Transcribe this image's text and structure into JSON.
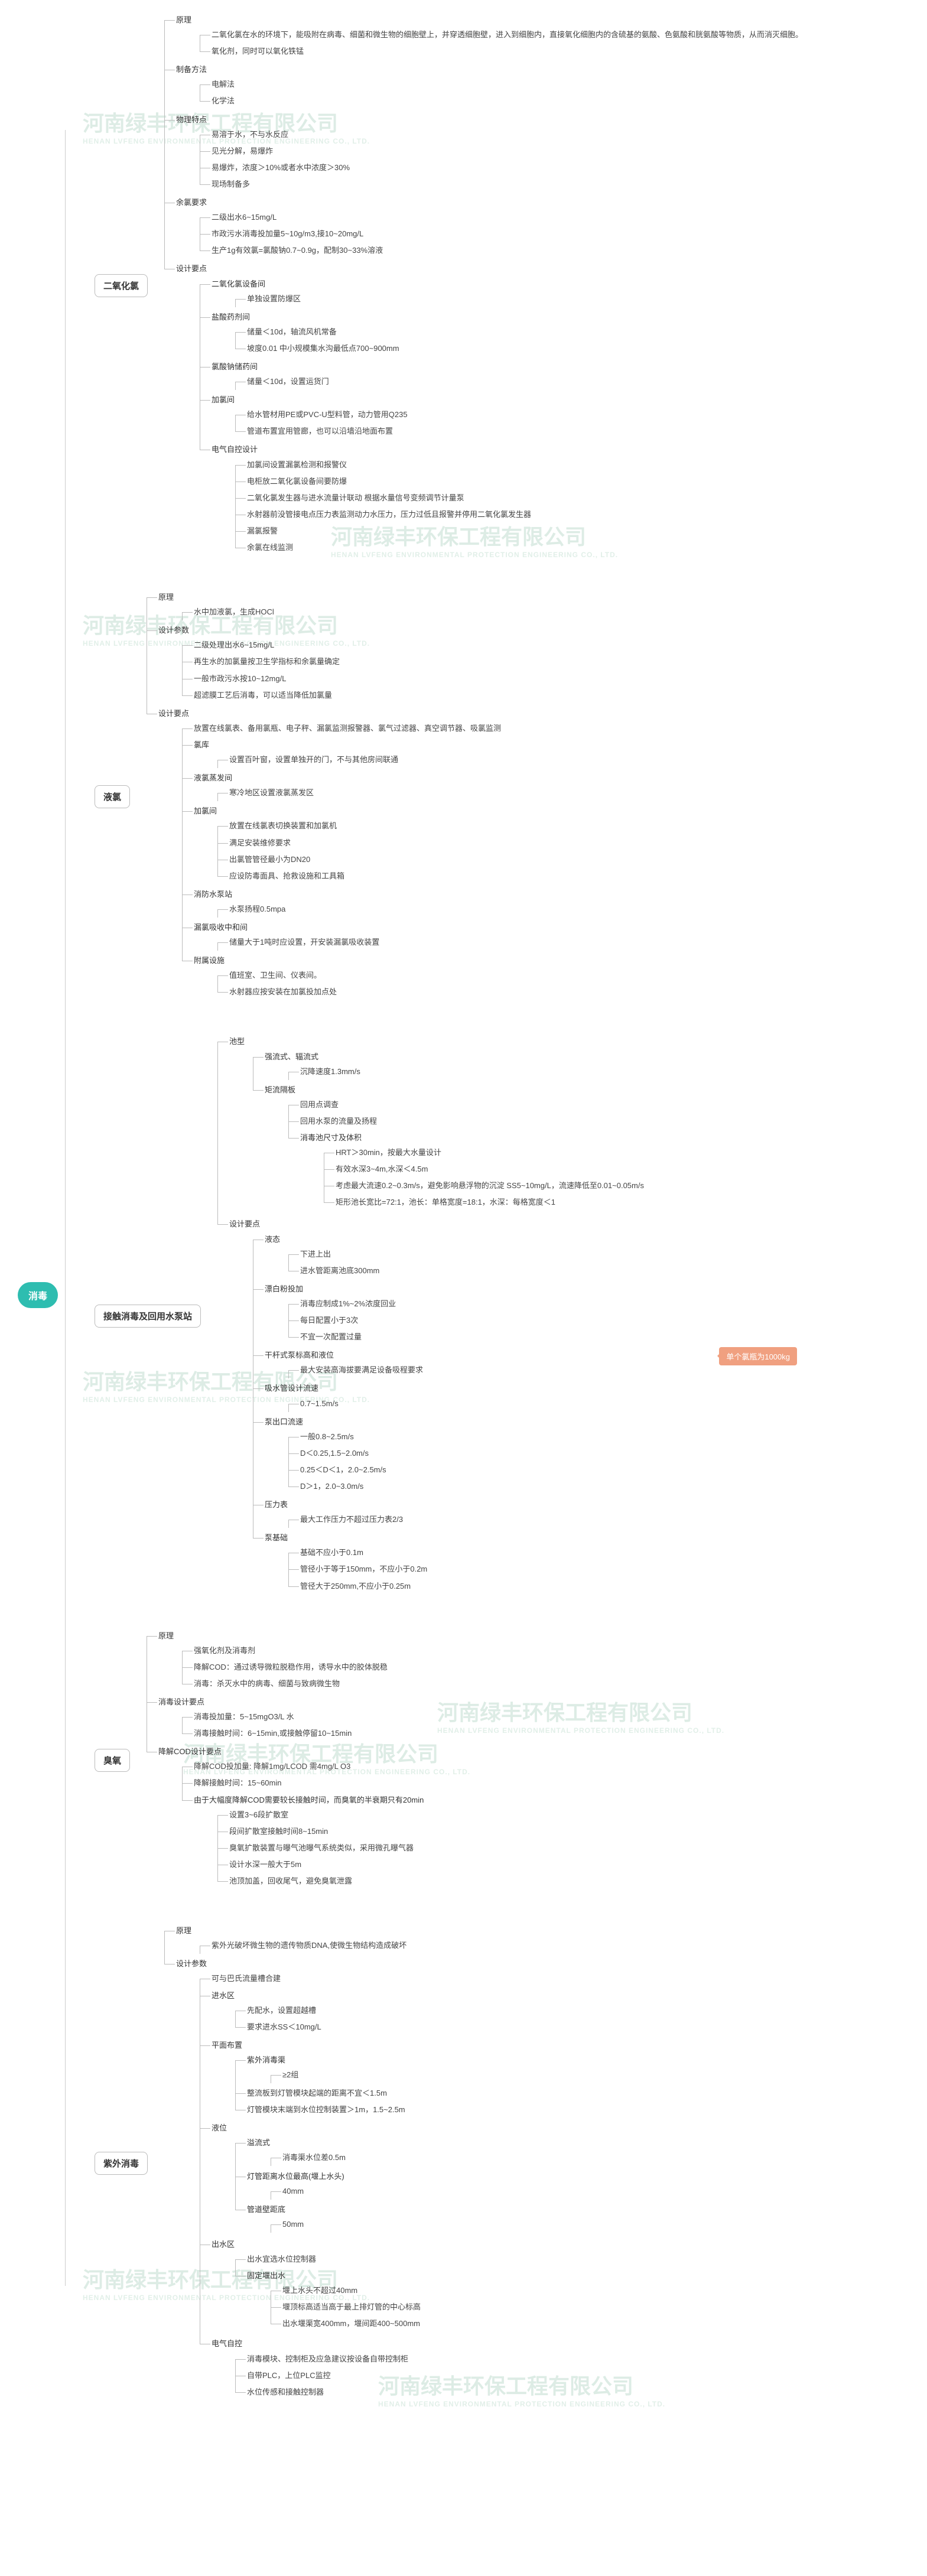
{
  "watermark": {
    "main": "河南绿丰环保工程有限公司",
    "sub": "HENAN LVFENG ENVIRONMENTAL PROTECTION ENGINEERING CO., LTD."
  },
  "root": "消毒",
  "callout": "单个氯瓶为1000kg",
  "sections": [
    {
      "title": "二氧化氯",
      "children": [
        {
          "label": "原理",
          "children": [
            {
              "leaf": "二氧化氯在水的环境下，能吸附在病毒、细菌和微生物的细胞壁上，并穿透细胞壁，进入到细胞内，直接氧化细胞内的含硫基的氨酸、色氨酸和胱氨酸等物质，从而消灭细胞。"
            },
            {
              "leaf": "氧化剂，同时可以氧化铁锰"
            }
          ]
        },
        {
          "label": "制备方法",
          "children": [
            {
              "leaf": "电解法"
            },
            {
              "leaf": "化学法"
            }
          ]
        },
        {
          "label": "物理特点",
          "children": [
            {
              "leaf": "易溶于水，不与水反应"
            },
            {
              "leaf": "见光分解，易爆炸"
            },
            {
              "leaf": "易爆炸，浓度＞10%或者水中浓度＞30%"
            },
            {
              "leaf": "现场制备多"
            }
          ]
        },
        {
          "label": "余氯要求",
          "children": [
            {
              "leaf": "二级出水6~15mg/L"
            },
            {
              "leaf": "市政污水消毒投加量5~10g/m3,接10~20mg/L"
            },
            {
              "leaf": "生产1g有效氯=氯酸钠0.7~0.9g，配制30~33%溶液"
            }
          ]
        },
        {
          "label": "设计要点",
          "children": [
            {
              "label": "二氧化氯设备间",
              "children": [
                {
                  "leaf": "单独设置防爆区"
                }
              ]
            },
            {
              "label": "盐酸药剂间",
              "children": [
                {
                  "leaf": "储量＜10d，轴流风机常备"
                },
                {
                  "leaf": "坡度0.01 中小规模集水沟最低点700~900mm"
                }
              ]
            },
            {
              "label": "氯酸钠储药间",
              "children": [
                {
                  "leaf": "储量＜10d，设置运货门"
                }
              ]
            },
            {
              "label": "加氯间",
              "children": [
                {
                  "leaf": "给水管材用PE或PVC-U型料管，动力管用Q235"
                },
                {
                  "leaf": "管道布置宜用管廊，也可以沿墙沿地面布置"
                }
              ]
            },
            {
              "label": "电气自控设计",
              "children": [
                {
                  "leaf": "加氯间设置漏氯检测和报警仪"
                },
                {
                  "leaf": "电柜放二氧化氯设备间要防爆"
                },
                {
                  "leaf": "二氧化氯发生器与进水流量计联动 根据水量信号变频调节计量泵"
                },
                {
                  "leaf": "水射器前没管接电点压力表监测动力水压力，压力过低且报警并停用二氧化氯发生器"
                },
                {
                  "leaf": "漏氯报警"
                },
                {
                  "leaf": "余氯在线监测"
                }
              ]
            }
          ]
        }
      ]
    },
    {
      "title": "液氯",
      "children": [
        {
          "label": "原理",
          "children": [
            {
              "leaf": "水中加液氯，生成HOCl"
            }
          ]
        },
        {
          "label": "设计参数",
          "children": [
            {
              "leaf": "二级处理出水6~15mg/L"
            },
            {
              "leaf": "再生水的加氯量按卫生学指标和余氯量确定"
            },
            {
              "leaf": "一般市政污水按10~12mg/L"
            },
            {
              "leaf": "超滤膜工艺后消毒，可以适当降低加氯量"
            }
          ]
        },
        {
          "label": "设计要点",
          "children": [
            {
              "leaf": "放置在线氯表、备用氯瓶、电子秤、漏氯监测报警器、氯气过滤器、真空调节器、吸氯监测"
            },
            {
              "label": "氯库",
              "children": [
                {
                  "leaf": "设置百叶窗，设置单独开的门，不与其他房间联通"
                }
              ]
            },
            {
              "label": "液氯蒸发间",
              "children": [
                {
                  "leaf": "寒冷地区设置液氯蒸发区"
                }
              ]
            },
            {
              "label": "加氯间",
              "children": [
                {
                  "leaf": "放置在线氯表切换装置和加氯机"
                },
                {
                  "leaf": "满足安装维修要求"
                },
                {
                  "leaf": "出氯管管径最小为DN20"
                },
                {
                  "leaf": "应设防毒面具、抢救设施和工具箱"
                }
              ]
            },
            {
              "label": "消防水泵站",
              "children": [
                {
                  "leaf": "水泵扬程0.5mpa"
                }
              ]
            },
            {
              "label": "漏氯吸收中和间",
              "children": [
                {
                  "leaf": "储量大于1吨时应设置，开安装漏氯吸收装置"
                }
              ]
            },
            {
              "label": "附属设施",
              "children": [
                {
                  "leaf": "值班室、卫生间、仪表间。"
                },
                {
                  "leaf": "水射器应按安装在加氯投加点处"
                }
              ]
            }
          ]
        }
      ]
    },
    {
      "title": "接触消毒及回用水泵站",
      "children": [
        {
          "label": "池型",
          "children": [
            {
              "label": "强流式、辐流式",
              "children": [
                {
                  "leaf": "沉降速度1.3mm/s"
                }
              ]
            },
            {
              "label": "矩流隔板",
              "children": [
                {
                  "leaf": "回用点调查"
                },
                {
                  "leaf": "回用水泵的流量及扬程"
                },
                {
                  "label": "消毒池尺寸及体积",
                  "children": [
                    {
                      "leaf": "HRT＞30min，按最大水量设计"
                    },
                    {
                      "leaf": "有效水深3~4m,水深＜4.5m"
                    },
                    {
                      "leaf": "考虑最大流速0.2~0.3m/s，避免影响悬浮物的沉淀 SS5~10mg/L，流速降低至0.01~0.05m/s"
                    },
                    {
                      "leaf": "矩形池长宽比=72:1，池长：单格宽度=18:1，水深：每格宽度＜1"
                    }
                  ]
                }
              ]
            }
          ]
        },
        {
          "label": "设计要点",
          "children": [
            {
              "label": "液态",
              "children": [
                {
                  "leaf": "下进上出"
                },
                {
                  "leaf": "进水管距离池底300mm"
                }
              ]
            },
            {
              "label": "漂白粉投加",
              "children": [
                {
                  "leaf": "消毒应制成1%~2%浓度回业"
                },
                {
                  "leaf": "每日配置小于3次"
                },
                {
                  "leaf": "不宜一次配置过量"
                }
              ]
            },
            {
              "label": "干杆式泵标高和液位",
              "children": [
                {
                  "leaf": "最大安装高海拔要满足设备吸程要求"
                }
              ]
            },
            {
              "label": "吸水管设计流速",
              "children": [
                {
                  "leaf": "0.7~1.5m/s"
                }
              ]
            },
            {
              "label": "泵出口流速",
              "children": [
                {
                  "leaf": "一般0.8~2.5m/s"
                },
                {
                  "leaf": "D＜0.25,1.5~2.0m/s"
                },
                {
                  "leaf": "0.25＜D＜1，2.0~2.5m/s"
                },
                {
                  "leaf": "D＞1，2.0~3.0m/s"
                }
              ]
            },
            {
              "label": "压力表",
              "children": [
                {
                  "leaf": "最大工作压力不超过压力表2/3"
                }
              ]
            },
            {
              "label": "泵基础",
              "children": [
                {
                  "leaf": "基础不应小于0.1m"
                },
                {
                  "leaf": "管径小于等于150mm，不应小于0.2m"
                },
                {
                  "leaf": "管径大于250mm,不应小于0.25m"
                }
              ]
            }
          ]
        }
      ]
    },
    {
      "title": "臭氧",
      "children": [
        {
          "label": "原理",
          "children": [
            {
              "leaf": "强氧化剂及消毒剂"
            },
            {
              "leaf": "降解COD：通过诱导微粒脱稳作用，诱导水中的胶体脱稳"
            },
            {
              "leaf": "消毒：杀灭水中的病毒、细菌与致病微生物"
            }
          ]
        },
        {
          "label": "消毒设计要点",
          "children": [
            {
              "leaf": "消毒投加量：5~15mgO3/L 水"
            },
            {
              "leaf": "消毒接触时间：6~15min,或接触停留10~15min"
            }
          ]
        },
        {
          "label": "降解COD设计要点",
          "children": [
            {
              "leaf": "降解COD投加量: 降解1mg/LCOD 需4mg/L O3"
            },
            {
              "leaf": "降解接触时间：15~60min"
            },
            {
              "label": "由于大幅度降解COD需要较长接触时间，而臭氧的半衰期只有20min",
              "children": [
                {
                  "leaf": "设置3~6段扩散室"
                },
                {
                  "leaf": "段间扩散室接触时间8~15min"
                },
                {
                  "leaf": "臭氧扩散装置与曝气池曝气系统类似，采用微孔曝气器"
                },
                {
                  "leaf": "设计水深一般大于5m"
                },
                {
                  "leaf": "池顶加盖，回收尾气，避免臭氧泄露"
                }
              ]
            }
          ]
        }
      ]
    },
    {
      "title": "紫外消毒",
      "children": [
        {
          "label": "原理",
          "children": [
            {
              "leaf": "紫外光破坏微生物的遗传物质DNA,使微生物结构造成破坏"
            }
          ]
        },
        {
          "label": "设计参数",
          "children": [
            {
              "leaf": "可与巴氏流量槽合建"
            },
            {
              "label": "进水区",
              "children": [
                {
                  "leaf": "先配水，设置超越槽"
                },
                {
                  "leaf": "要求进水SS＜10mg/L"
                }
              ]
            },
            {
              "label": "平面布置",
              "children": [
                {
                  "label": "紫外消毒渠",
                  "children": [
                    {
                      "leaf": "≥2组"
                    }
                  ]
                },
                {
                  "leaf": "整流板到灯管模块起端的距离不宜＜1.5m"
                },
                {
                  "leaf": "灯管模块末端到水位控制装置＞1m，1.5~2.5m"
                }
              ]
            },
            {
              "label": "液位",
              "children": [
                {
                  "label": "溢流式",
                  "children": [
                    {
                      "leaf": "消毒渠水位差0.5m"
                    }
                  ]
                },
                {
                  "label": "灯管距离水位最高(堰上水头)",
                  "children": [
                    {
                      "leaf": "40mm"
                    }
                  ]
                },
                {
                  "label": "管道壁距底",
                  "children": [
                    {
                      "leaf": "50mm"
                    }
                  ]
                }
              ]
            },
            {
              "label": "出水区",
              "children": [
                {
                  "leaf": "出水宜选水位控制器"
                },
                {
                  "label": "固定堰出水",
                  "children": [
                    {
                      "leaf": "堰上水头不超过40mm"
                    },
                    {
                      "leaf": "堰顶标高适当高于最上排灯管的中心标高"
                    },
                    {
                      "leaf": "出水堰渠宽400mm，堰间距400~500mm"
                    }
                  ]
                }
              ]
            },
            {
              "label": "电气自控",
              "children": [
                {
                  "leaf": "消毒模块、控制柜及应急建议按设备自带控制柜"
                },
                {
                  "leaf": "自带PLC，上位PLC监控"
                },
                {
                  "leaf": "水位传感和接触控制器"
                }
              ]
            }
          ]
        }
      ]
    }
  ]
}
